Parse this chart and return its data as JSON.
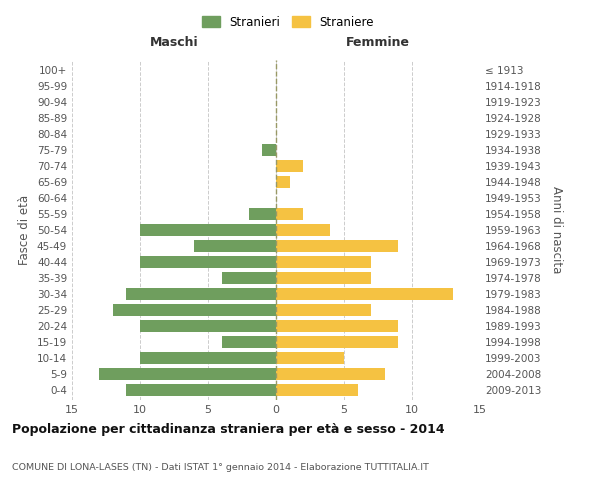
{
  "age_groups": [
    "0-4",
    "5-9",
    "10-14",
    "15-19",
    "20-24",
    "25-29",
    "30-34",
    "35-39",
    "40-44",
    "45-49",
    "50-54",
    "55-59",
    "60-64",
    "65-69",
    "70-74",
    "75-79",
    "80-84",
    "85-89",
    "90-94",
    "95-99",
    "100+"
  ],
  "birth_years": [
    "2009-2013",
    "2004-2008",
    "1999-2003",
    "1994-1998",
    "1989-1993",
    "1984-1988",
    "1979-1983",
    "1974-1978",
    "1969-1973",
    "1964-1968",
    "1959-1963",
    "1954-1958",
    "1949-1953",
    "1944-1948",
    "1939-1943",
    "1934-1938",
    "1929-1933",
    "1924-1928",
    "1919-1923",
    "1914-1918",
    "≤ 1913"
  ],
  "males": [
    11,
    13,
    10,
    4,
    10,
    12,
    11,
    4,
    10,
    6,
    10,
    2,
    0,
    0,
    0,
    1,
    0,
    0,
    0,
    0,
    0
  ],
  "females": [
    6,
    8,
    5,
    9,
    9,
    7,
    13,
    7,
    7,
    9,
    4,
    2,
    0,
    1,
    2,
    0,
    0,
    0,
    0,
    0,
    0
  ],
  "male_color": "#6f9e5e",
  "female_color": "#f5c242",
  "grid_color": "#cccccc",
  "bg_color": "#ffffff",
  "title": "Popolazione per cittadinanza straniera per età e sesso - 2014",
  "subtitle": "COMUNE DI LONA-LASES (TN) - Dati ISTAT 1° gennaio 2014 - Elaborazione TUTTITALIA.IT",
  "xlabel_left": "Maschi",
  "xlabel_right": "Femmine",
  "ylabel_left": "Fasce di età",
  "ylabel_right": "Anni di nascita",
  "legend_male": "Stranieri",
  "legend_female": "Straniere",
  "xlim": 15
}
